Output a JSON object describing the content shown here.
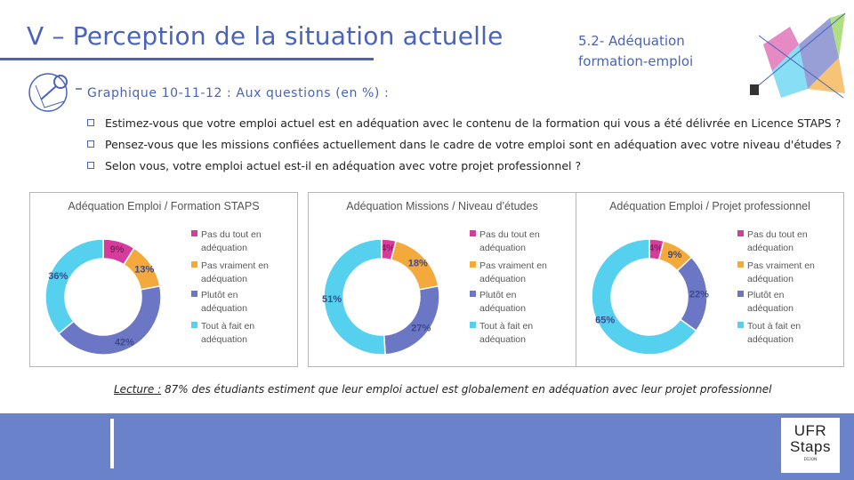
{
  "header": {
    "title": "V – Perception de la situation actuelle",
    "section": "5.2- Adéquation formation-emploi"
  },
  "graph": {
    "heading": "Graphique 10-11-12 : Aux questions (en %) :",
    "questions": [
      "Estimez-vous que votre emploi actuel est en adéquation avec le contenu de la formation qui vous a été délivrée en Licence STAPS ?",
      "Pensez-vous que les missions confiées actuellement dans le cadre de votre emploi sont en adéquation avec votre niveau d'études ?",
      "Selon vous, votre emploi actuel est-il en adéquation avec votre projet professionnel ?"
    ]
  },
  "colors": {
    "pas_du_tout": "#d63c9b",
    "pas_vraiment": "#f4a93c",
    "plutot": "#6b76c4",
    "tout_a_fait": "#55d0ef",
    "accent": "#4a63b8",
    "footer": "#6a82c9"
  },
  "chart_data": [
    {
      "type": "pie",
      "title": "Adéquation Emploi / Formation STAPS",
      "categories": [
        "Pas du tout en adéquation",
        "Pas vraiment en adéquation",
        "Plutôt en adéquation",
        "Tout à fait en adéquation"
      ],
      "values": [
        9,
        13,
        42,
        36
      ],
      "labels": [
        "9%",
        "13%",
        "42%",
        "36%"
      ]
    },
    {
      "type": "pie",
      "title": "Adéquation Missions / Niveau d’études",
      "categories": [
        "Pas du tout en adéquation",
        "Pas vraiment en adéquation",
        "Plutôt en adéquation",
        "Tout à fait en adéquation"
      ],
      "values": [
        4,
        18,
        27,
        51
      ],
      "labels": [
        "4%",
        "18%",
        "27%",
        "51%"
      ]
    },
    {
      "type": "pie",
      "title": "Adéquation Emploi / Projet professionnel",
      "categories": [
        "Pas du tout en adéquation",
        "Pas vraiment en adéquation",
        "Plutôt en adéquation",
        "Tout à fait en adéquation"
      ],
      "values": [
        4,
        9,
        22,
        65
      ],
      "labels": [
        "4%",
        "9%",
        "22%",
        "65%"
      ]
    }
  ],
  "caption": {
    "label": "Lecture :",
    "text": " 87% des étudiants estiment que leur emploi actuel est globalement en adéquation avec leur projet professionnel"
  },
  "logo": {
    "line1": "UFR",
    "line2": "Staps",
    "line3": "ᴅɪᴊᴏɴ"
  }
}
